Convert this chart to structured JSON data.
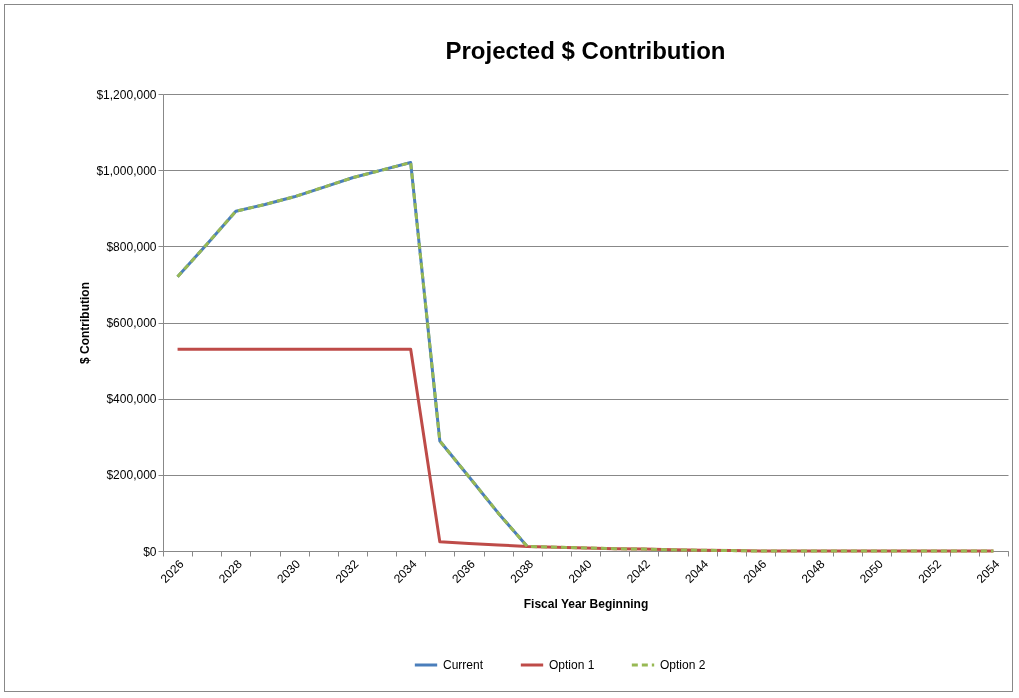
{
  "chart_data": {
    "type": "line",
    "title": "Projected $ Contribution",
    "xlabel": "Fiscal Year Beginning",
    "ylabel": "$ Contribution",
    "categories": [
      "2026",
      null,
      "2028",
      null,
      "2030",
      null,
      "2032",
      null,
      "2034",
      null,
      "2036",
      null,
      "2038",
      null,
      "2040",
      null,
      "2042",
      null,
      "2044",
      null,
      "2046",
      null,
      "2048",
      null,
      "2050",
      null,
      "2052",
      null,
      "2054"
    ],
    "series": [
      {
        "name": "Current",
        "color": "#4a7ebb",
        "line_style": "solid",
        "values": [
          720000,
          805000,
          892000,
          910000,
          930000,
          955000,
          980000,
          1000000,
          1020000,
          289000,
          195000,
          100000,
          12000,
          null,
          null,
          null,
          null,
          null,
          null,
          null,
          null,
          null,
          null,
          null,
          null,
          null,
          null,
          null,
          null
        ]
      },
      {
        "name": "Option 1",
        "color": "#be4b48",
        "line_style": "solid",
        "values": [
          530000,
          530000,
          530000,
          530000,
          530000,
          530000,
          530000,
          530000,
          530000,
          24000,
          20000,
          16000,
          12000,
          10000,
          8000,
          6000,
          5000,
          3000,
          2000,
          1000,
          0,
          0,
          0,
          0,
          0,
          0,
          0,
          0,
          0
        ]
      },
      {
        "name": "Option 2",
        "color": "#98b954",
        "line_style": "dashed",
        "values": [
          720000,
          805000,
          892000,
          910000,
          930000,
          955000,
          980000,
          1000000,
          1020000,
          289000,
          195000,
          100000,
          12000,
          10000,
          8000,
          6000,
          5000,
          3000,
          2000,
          1000,
          0,
          0,
          0,
          0,
          0,
          0,
          0,
          0,
          0
        ]
      }
    ],
    "ylim": [
      0,
      1200000
    ],
    "yticks": [
      {
        "value": 0,
        "label": "$0"
      },
      {
        "value": 200000,
        "label": "$200,000"
      },
      {
        "value": 400000,
        "label": "$400,000"
      },
      {
        "value": 600000,
        "label": "$600,000"
      },
      {
        "value": 800000,
        "label": "$800,000"
      },
      {
        "value": 1000000,
        "label": "$1,000,000"
      },
      {
        "value": 1200000,
        "label": "$1,200,000"
      }
    ],
    "grid": "y",
    "legend": "bottom"
  }
}
